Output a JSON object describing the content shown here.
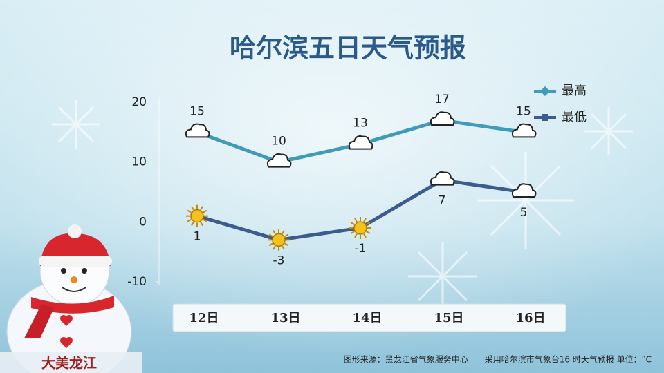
{
  "chart_data": {
    "type": "line",
    "title": "哈尔滨五日天气预报",
    "categories": [
      "12日",
      "13日",
      "14日",
      "15日",
      "16日"
    ],
    "series": [
      {
        "name": "最高",
        "color": "#3f9bb8",
        "values": [
          15,
          10,
          13,
          17,
          15
        ],
        "icons": [
          "cloud",
          "cloud",
          "cloud",
          "cloud",
          "cloud"
        ],
        "label_side": "above"
      },
      {
        "name": "最低",
        "color": "#3c5c90",
        "values": [
          1,
          -3,
          -1,
          7,
          5
        ],
        "icons": [
          "sun",
          "sun",
          "sun",
          "cloud",
          "cloud"
        ],
        "label_side": "below"
      }
    ],
    "ylim": [
      -10,
      20
    ],
    "yticks": [
      -10,
      0,
      10,
      20
    ],
    "grid": false,
    "legend": "top-right",
    "source": "图形来源：黑龙江省气象服务中心　　采用哈尔滨市气象台16 时天气预报 单位：°C",
    "badge": "大美龙江"
  }
}
